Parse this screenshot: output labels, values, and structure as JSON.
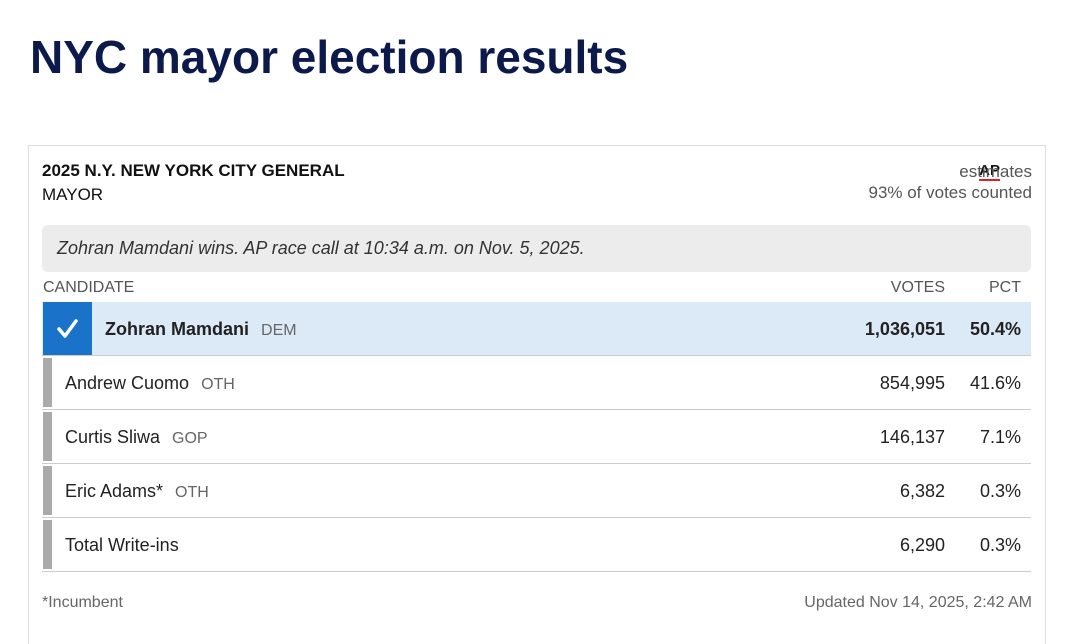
{
  "header": {
    "title": "NYC mayor election results"
  },
  "race": {
    "title": "2025 N.Y. NEW YORK CITY GENERAL",
    "office": "MAYOR",
    "source": "AP",
    "source_note": "estimates",
    "counted": "93% of votes counted",
    "call": "Zohran Mamdani wins. AP race call at 10:34 a.m. on Nov. 5, 2025."
  },
  "table": {
    "columns": [
      "CANDIDATE",
      "VOTES",
      "PCT"
    ],
    "rows": [
      {
        "name": "Zohran Mamdani",
        "party": "DEM",
        "votes": "1,036,051",
        "pct": "50.4%",
        "winner": true
      },
      {
        "name": "Andrew Cuomo",
        "party": "OTH",
        "votes": "854,995",
        "pct": "41.6%"
      },
      {
        "name": "Curtis Sliwa",
        "party": "GOP",
        "votes": "146,137",
        "pct": "7.1%"
      },
      {
        "name": "Eric Adams*",
        "party": "OTH",
        "votes": "6,382",
        "pct": "0.3%"
      },
      {
        "name": "Total Write-ins",
        "votes": "6,290",
        "pct": "0.3%"
      }
    ]
  },
  "footer": {
    "note": "*Incumbent",
    "updated": "Updated Nov 14, 2025, 2:42 AM"
  }
}
